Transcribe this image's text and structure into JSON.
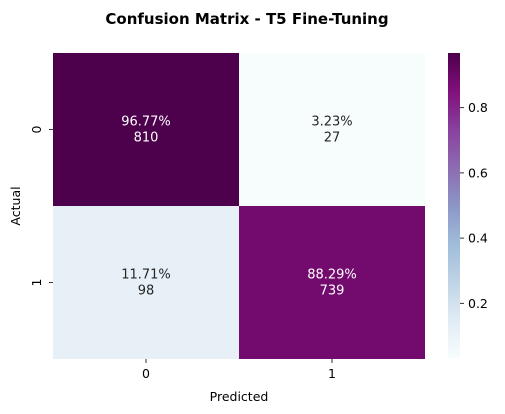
{
  "chart_data": {
    "type": "heatmap",
    "title": "Confusion Matrix - T5 Fine-Tuning",
    "xlabel": "Predicted",
    "ylabel": "Actual",
    "x_categories": [
      "0",
      "1"
    ],
    "y_categories": [
      "0",
      "1"
    ],
    "cells": [
      [
        {
          "value": 0.9677,
          "percent": "96.77%",
          "count": "810"
        },
        {
          "value": 0.0323,
          "percent": "3.23%",
          "count": "27"
        }
      ],
      [
        {
          "value": 0.1171,
          "percent": "11.71%",
          "count": "98"
        },
        {
          "value": 0.8829,
          "percent": "88.29%",
          "count": "739"
        }
      ]
    ],
    "colorbar": {
      "colormap": "BuPu",
      "ticks": [
        "0.2",
        "0.4",
        "0.6",
        "0.8"
      ],
      "tick_values": [
        0.2,
        0.4,
        0.6,
        0.8
      ],
      "range": [
        0.0323,
        0.9677
      ]
    },
    "colors": {
      "stop_0": "#f7fcfd",
      "stop_1": "#e0ecf4",
      "stop_2": "#bfd3e6",
      "stop_3": "#9ebcda",
      "stop_4": "#8c96c6",
      "stop_5": "#8c6bb1",
      "stop_6": "#88419d",
      "stop_7": "#810f7c",
      "stop_8": "#4d004b"
    }
  }
}
